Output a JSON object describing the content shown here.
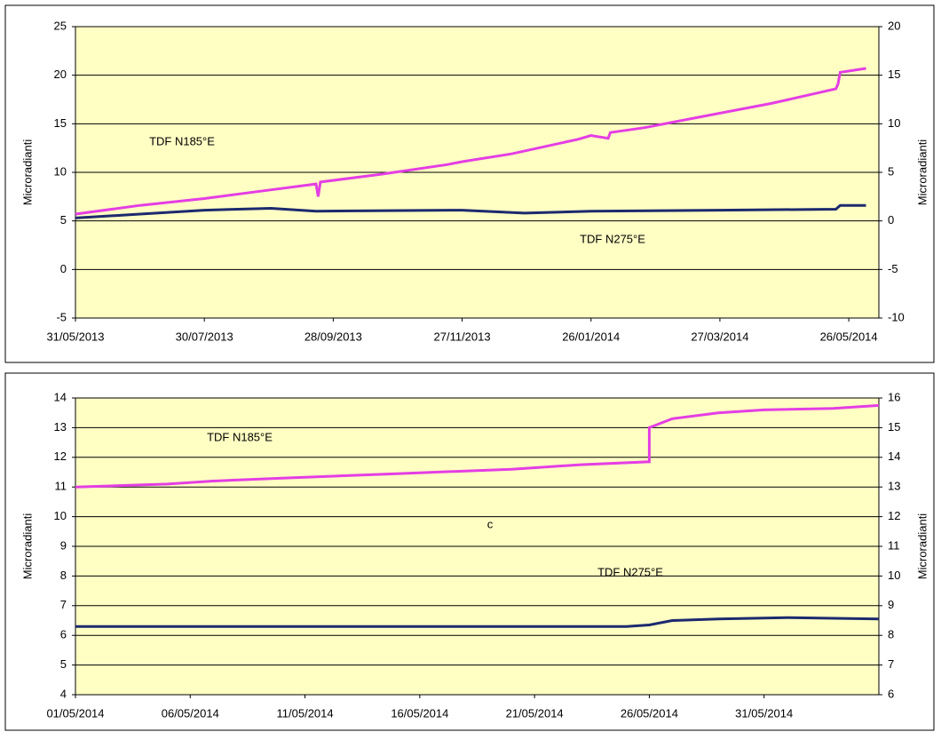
{
  "chart_data": [
    {
      "type": "line",
      "ylabel": "Microradianti",
      "y2label": "Microradianti",
      "ylim": [
        -5,
        25
      ],
      "yticks": [
        -5,
        0,
        5,
        10,
        15,
        20,
        25
      ],
      "y2lim": [
        -10,
        20
      ],
      "y2ticks": [
        -10,
        -5,
        0,
        5,
        10,
        15,
        20
      ],
      "xlim": [
        "31/05/2013",
        "09/06/2014"
      ],
      "xticks": [
        "31/05/2013",
        "30/07/2013",
        "28/09/2013",
        "27/11/2013",
        "26/01/2014",
        "27/03/2014",
        "26/05/2014"
      ],
      "grid": true,
      "series": [
        {
          "name": "TDF N185°E",
          "color": "#e43ee4",
          "x": [
            "31/05/2013",
            "30/06/2013",
            "30/07/2013",
            "30/08/2013",
            "20/09/2013",
            "21/09/2013",
            "22/09/2013",
            "20/10/2013",
            "20/11/2013",
            "27/11/2013",
            "20/12/2013",
            "20/01/2014",
            "26/01/2014",
            "03/02/2014",
            "04/02/2014",
            "20/02/2014",
            "20/03/2014",
            "20/04/2014",
            "20/05/2014",
            "21/05/2014",
            "22/05/2014",
            "03/06/2014"
          ],
          "values": [
            5.7,
            6.6,
            7.3,
            8.2,
            8.8,
            7.5,
            9.0,
            9.8,
            10.8,
            11.1,
            11.9,
            13.4,
            13.8,
            13.5,
            14.1,
            14.6,
            15.8,
            17.1,
            18.6,
            19.1,
            20.3,
            20.7
          ]
        },
        {
          "name": "TDF N275°E",
          "color": "#1c2a6e",
          "axis": "y2",
          "x": [
            "31/05/2013",
            "30/06/2013",
            "30/07/2013",
            "30/08/2013",
            "20/09/2013",
            "27/11/2013",
            "26/12/2013",
            "26/01/2014",
            "27/03/2014",
            "20/05/2014",
            "22/05/2014",
            "03/06/2014"
          ],
          "values": [
            0.3,
            0.7,
            1.1,
            1.3,
            1.0,
            1.1,
            0.8,
            1.0,
            1.1,
            1.2,
            1.6,
            1.6
          ]
        }
      ]
    },
    {
      "type": "line",
      "ylabel": "Microradianti",
      "y2label": "Microradianti",
      "ylim": [
        4,
        14
      ],
      "yticks": [
        4,
        5,
        6,
        7,
        8,
        9,
        10,
        11,
        12,
        13,
        14
      ],
      "y2lim": [
        6,
        16
      ],
      "y2ticks": [
        6,
        7,
        8,
        9,
        10,
        11,
        12,
        13,
        14,
        15,
        16
      ],
      "xlim": [
        "01/05/2014",
        "05/06/2014"
      ],
      "xticks": [
        "01/05/2014",
        "06/05/2014",
        "11/05/2014",
        "16/05/2014",
        "21/05/2014",
        "26/05/2014",
        "31/05/2014"
      ],
      "grid": true,
      "annotations": [
        "c"
      ],
      "series": [
        {
          "name": "TDF N185°E",
          "color": "#e43ee4",
          "x": [
            "01/05/2014",
            "05/05/2014",
            "07/05/2014",
            "10/05/2014",
            "15/05/2014",
            "20/05/2014",
            "23/05/2014",
            "26/05/2014",
            "26/05/2014",
            "27/05/2014",
            "29/05/2014",
            "31/05/2014",
            "03/06/2014",
            "05/06/2014"
          ],
          "values": [
            11.0,
            11.1,
            11.2,
            11.3,
            11.45,
            11.6,
            11.75,
            11.85,
            13.0,
            13.3,
            13.5,
            13.6,
            13.65,
            13.75
          ]
        },
        {
          "name": "TDF N275°E",
          "color": "#1c2a6e",
          "axis": "y2",
          "x": [
            "01/05/2014",
            "10/05/2014",
            "20/05/2014",
            "25/05/2014",
            "26/05/2014",
            "27/05/2014",
            "29/05/2014",
            "01/06/2014",
            "05/06/2014"
          ],
          "values": [
            8.3,
            8.3,
            8.3,
            8.3,
            8.35,
            8.5,
            8.55,
            8.6,
            8.55
          ]
        }
      ]
    }
  ]
}
